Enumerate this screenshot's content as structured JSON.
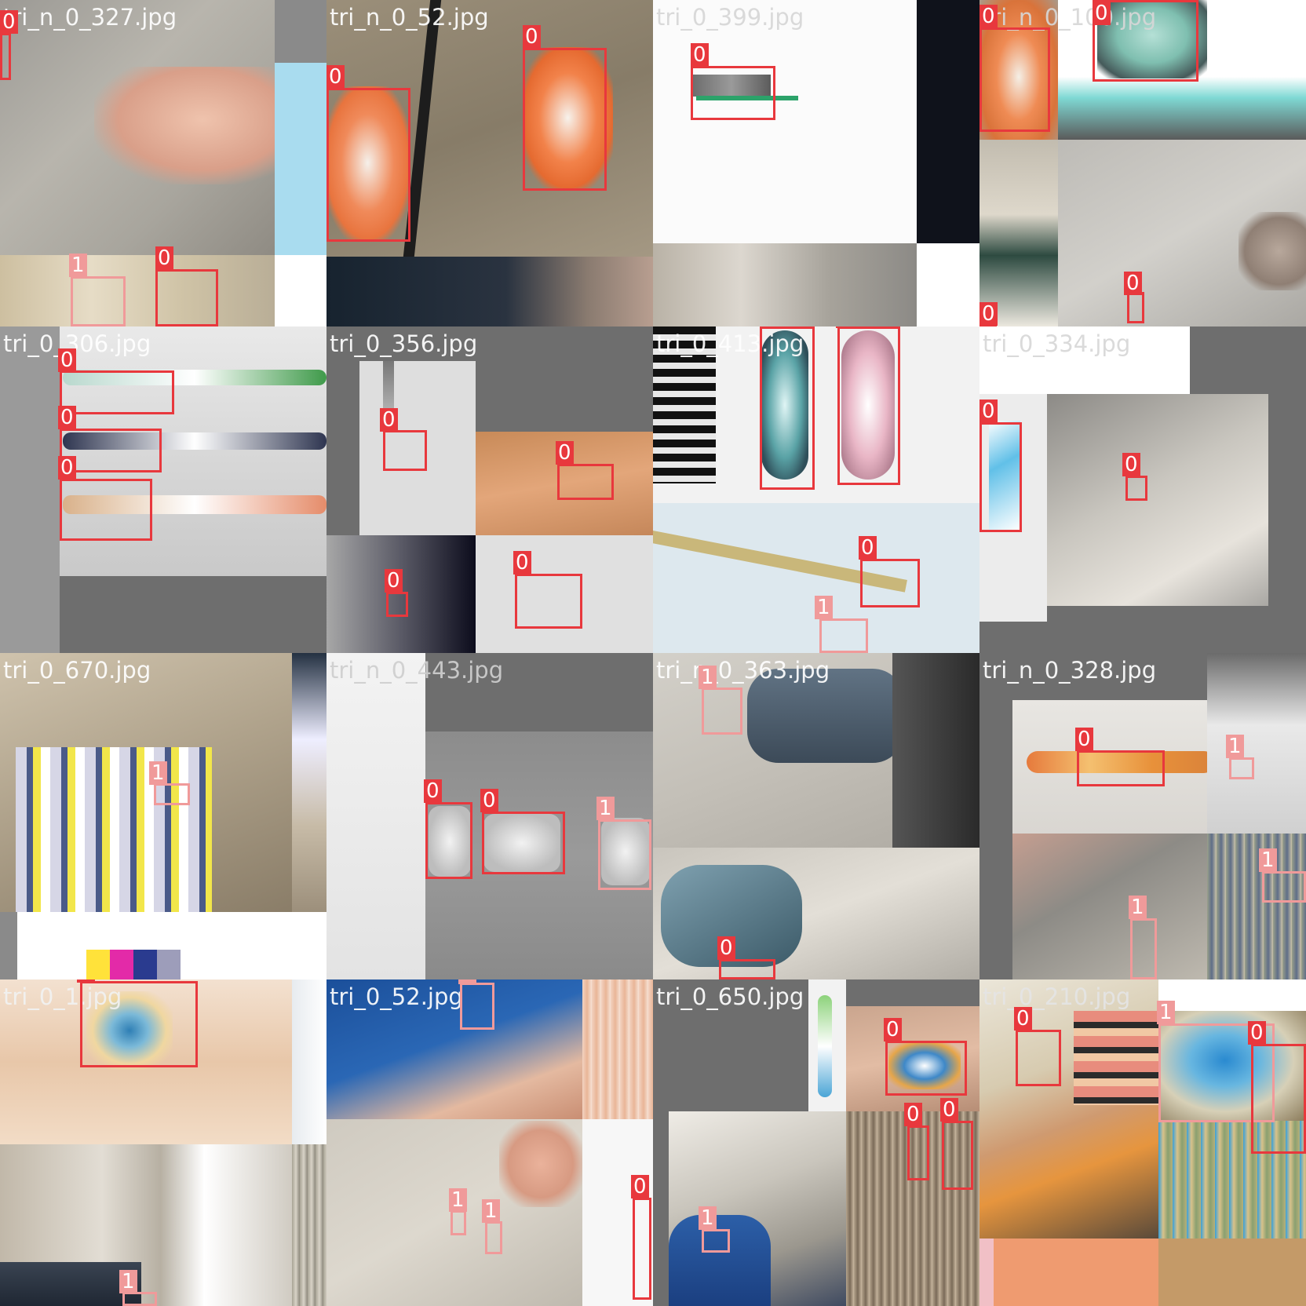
{
  "mosaic": {
    "class_colors": {
      "0": "#e8383d",
      "1": "#f09a9a"
    },
    "tiles": [
      {
        "filename": "tri_n_0_327.jpg",
        "labels": [
          "0",
          "1",
          "0"
        ]
      },
      {
        "filename": "tri_n_0_52.jpg",
        "labels": [
          "0",
          "0"
        ]
      },
      {
        "filename": "tri_0_399.jpg",
        "labels": [
          "0"
        ]
      },
      {
        "filename": "tri_n_0_100.jpg",
        "labels": [
          "0",
          "0",
          "0",
          "0"
        ]
      },
      {
        "filename": "tri_0_306.jpg",
        "labels": [
          "0",
          "0",
          "0"
        ]
      },
      {
        "filename": "tri_0_356.jpg",
        "labels": [
          "0",
          "0",
          "0",
          "0"
        ]
      },
      {
        "filename": "tri_0_413.jpg",
        "labels": [
          "0",
          "0",
          "0",
          "1"
        ]
      },
      {
        "filename": "tri_0_334.jpg",
        "labels": [
          "0",
          "0"
        ]
      },
      {
        "filename": "tri_0_670.jpg",
        "labels": [
          "1"
        ]
      },
      {
        "filename": "tri_n_0_443.jpg",
        "labels": [
          "0",
          "0",
          "1"
        ]
      },
      {
        "filename": "tri_n_0_363.jpg",
        "labels": [
          "1",
          "0"
        ]
      },
      {
        "filename": "tri_n_0_328.jpg",
        "labels": [
          "0",
          "1",
          "1",
          "1"
        ]
      },
      {
        "filename": "tri_0_1.jpg",
        "labels": [
          "0",
          "1"
        ]
      },
      {
        "filename": "tri_0_52.jpg",
        "labels": [
          "1",
          "1",
          "1",
          "0"
        ]
      },
      {
        "filename": "tri_0_650.jpg",
        "labels": [
          "0",
          "0",
          "0",
          "1"
        ]
      },
      {
        "filename": "tri_0_210.jpg",
        "labels": [
          "0",
          "1",
          "0"
        ]
      }
    ]
  }
}
